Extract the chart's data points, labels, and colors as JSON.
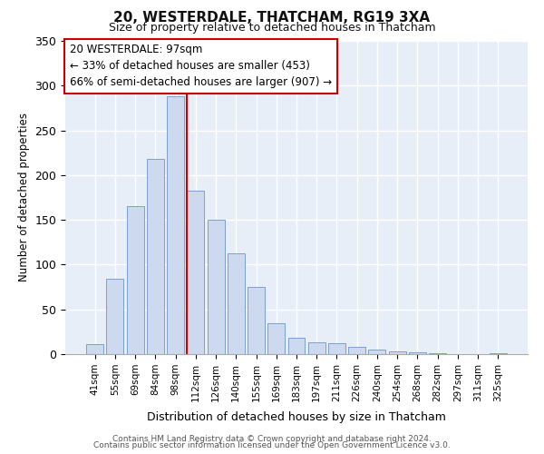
{
  "title": "20, WESTERDALE, THATCHAM, RG19 3XA",
  "subtitle": "Size of property relative to detached houses in Thatcham",
  "xlabel": "Distribution of detached houses by size in Thatcham",
  "ylabel": "Number of detached properties",
  "bar_labels": [
    "41sqm",
    "55sqm",
    "69sqm",
    "84sqm",
    "98sqm",
    "112sqm",
    "126sqm",
    "140sqm",
    "155sqm",
    "169sqm",
    "183sqm",
    "197sqm",
    "211sqm",
    "226sqm",
    "240sqm",
    "254sqm",
    "268sqm",
    "282sqm",
    "297sqm",
    "311sqm",
    "325sqm"
  ],
  "bar_values": [
    11,
    84,
    165,
    218,
    288,
    183,
    150,
    113,
    75,
    35,
    18,
    13,
    12,
    8,
    5,
    3,
    2,
    1,
    0,
    0,
    1
  ],
  "bar_color": "#cdd9ee",
  "bar_edge_color": "#7aa0cc",
  "property_line_index": 5,
  "property_line_color": "#cc0000",
  "annotation_title": "20 WESTERDALE: 97sqm",
  "annotation_line1": "← 33% of detached houses are smaller (453)",
  "annotation_line2": "66% of semi-detached houses are larger (907) →",
  "annotation_box_color": "#ffffff",
  "annotation_box_edge": "#cc0000",
  "ylim": [
    0,
    350
  ],
  "yticks": [
    0,
    50,
    100,
    150,
    200,
    250,
    300,
    350
  ],
  "footer1": "Contains HM Land Registry data © Crown copyright and database right 2024.",
  "footer2": "Contains public sector information licensed under the Open Government Licence v3.0.",
  "bg_color": "#ffffff",
  "plot_bg_color": "#e8eef8"
}
